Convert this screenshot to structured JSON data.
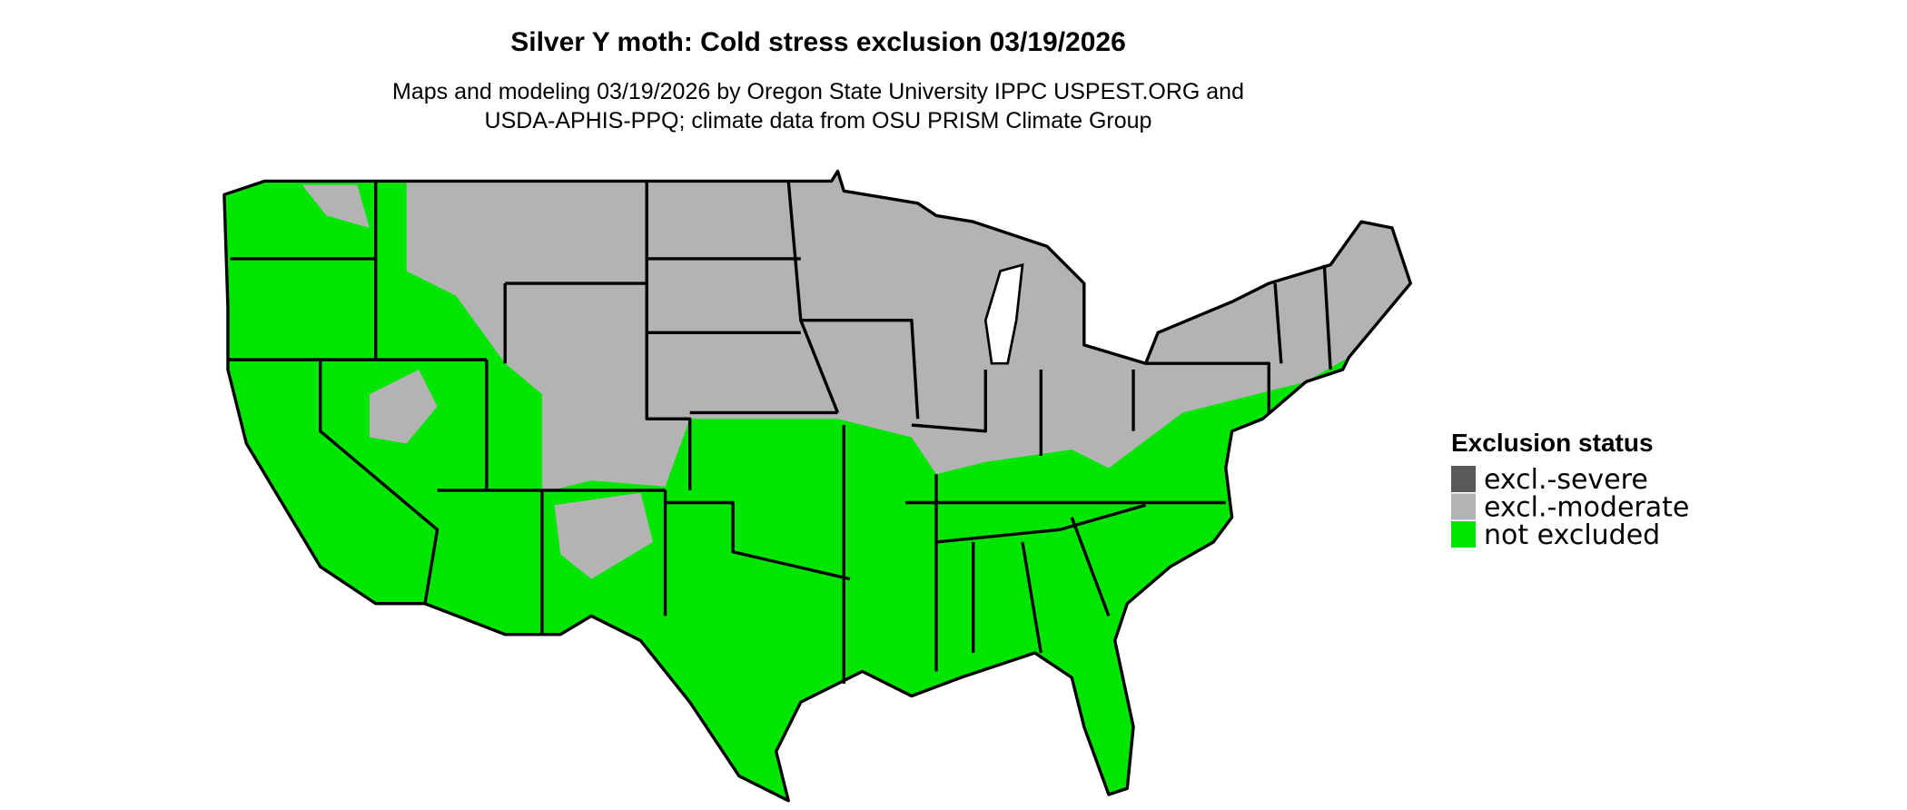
{
  "title": "Silver Y moth: Cold stress exclusion 03/19/2026",
  "subtitle": [
    "Maps and modeling 03/19/2026 by Oregon State University IPPC USPEST.ORG and",
    "USDA-APHIS-PPQ; climate data from OSU PRISM Climate Group"
  ],
  "legend": {
    "title": "Exclusion status",
    "items": [
      {
        "label": "excl.-severe",
        "color": "#595959"
      },
      {
        "label": "excl.-moderate",
        "color": "#b3b3b3"
      },
      {
        "label": "not excluded",
        "color": "#00e600"
      }
    ]
  }
}
